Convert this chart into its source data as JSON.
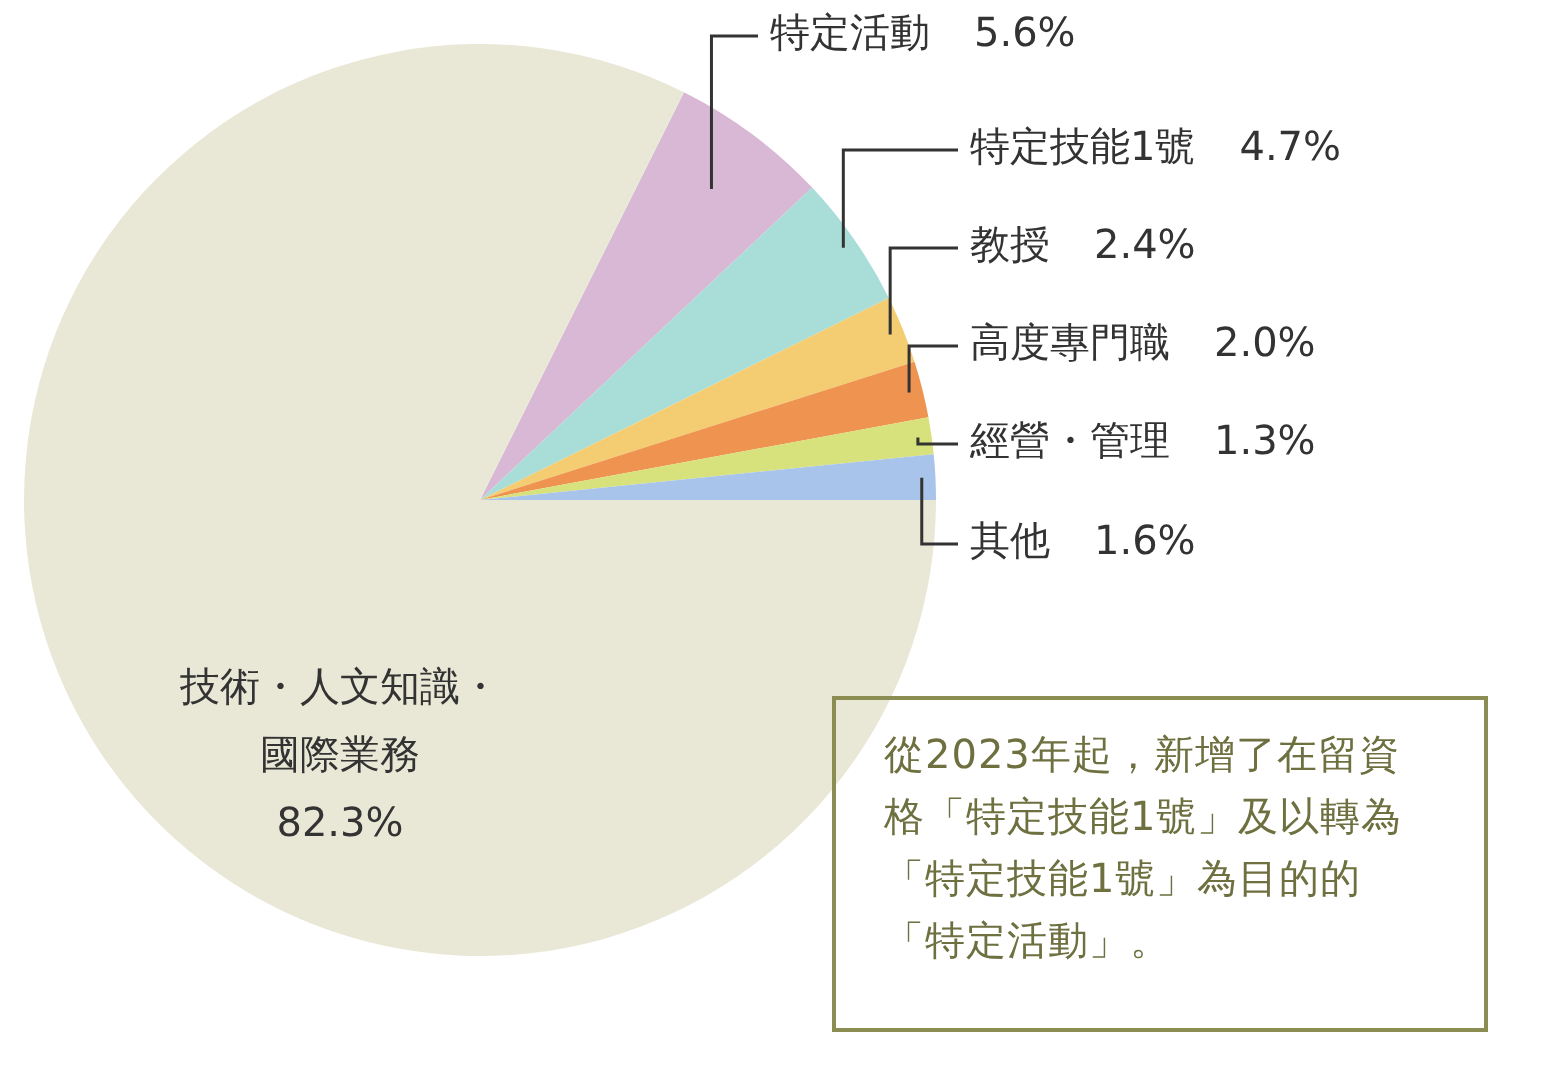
{
  "chart_data": {
    "type": "pie",
    "categories": [
      "特定活動",
      "特定技能1號",
      "教授",
      "高度專門職",
      "經營・管理",
      "其他",
      "技術・人文知識・國際業務"
    ],
    "values": [
      5.6,
      4.7,
      2.4,
      2.0,
      1.3,
      1.6,
      82.3
    ],
    "value_labels": [
      "5.6%",
      "4.7%",
      "2.4%",
      "2.0%",
      "1.3%",
      "1.6%",
      "82.3%"
    ],
    "colors": [
      "#d9b8d5",
      "#a9ded8",
      "#f4cd72",
      "#ef9450",
      "#d8e27c",
      "#a9c4ea",
      "#e9e8d6"
    ],
    "annotations": [
      "從2023年起，新增了在留資格「特定技能1號」及以轉為「特定技能1號」為目的的「特定活動」。"
    ],
    "legend": false
  }
}
